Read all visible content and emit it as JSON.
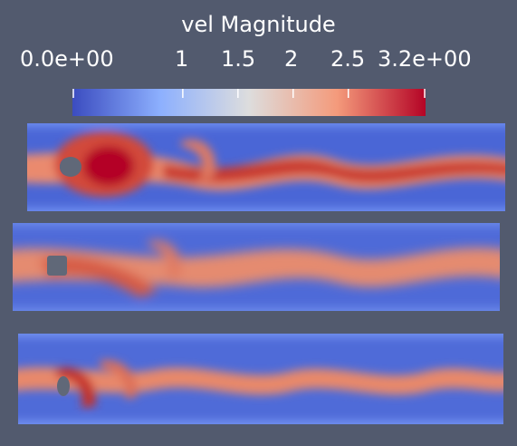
{
  "legend": {
    "title": "vel Magnitude",
    "range": [
      0,
      3.2
    ],
    "ticks": [
      {
        "value": 0.0,
        "label": "0.0e+00"
      },
      {
        "value": 1.0,
        "label": "1"
      },
      {
        "value": 1.5,
        "label": "1.5"
      },
      {
        "value": 2.0,
        "label": "2"
      },
      {
        "value": 2.5,
        "label": "2.5"
      },
      {
        "value": 3.2,
        "label": "3.2e+00"
      }
    ],
    "colormap": [
      "#3b4cc0",
      "#8db0fe",
      "#dddddd",
      "#f49a7b",
      "#b40426"
    ]
  },
  "background_color": "#525a6e",
  "panels": [
    {
      "name": "panel-1"
    },
    {
      "name": "panel-2"
    },
    {
      "name": "panel-3"
    }
  ]
}
